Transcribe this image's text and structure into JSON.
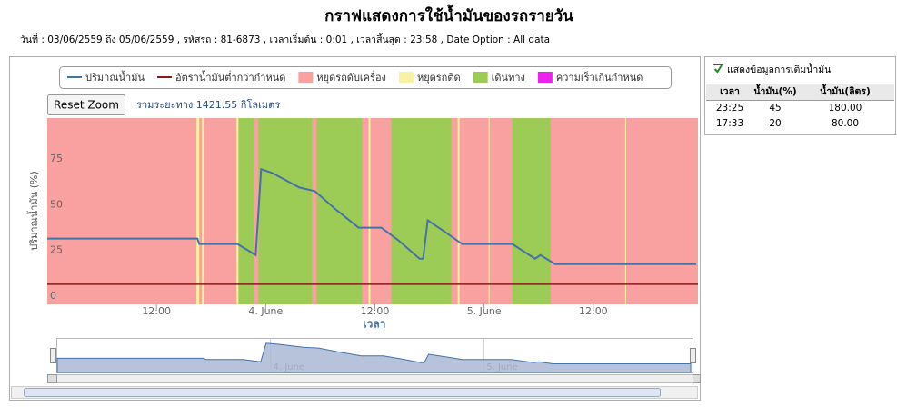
{
  "header": {
    "title": "กราฟแสดงการใช้น้ำมันของรถรายวัน",
    "subtitle": "วันที่ : 03/06/2559 ถึง 05/06/2559 , รหัสรถ : 81-6873 , เวลาเริ่มต้น : 0:01 , เวลาสิ้นสุด : 23:58 , Date Option : All data"
  },
  "chart_data": {
    "type": "line",
    "reset_zoom": "Reset Zoom",
    "distance_label": "รวมระยะทาง 1421.55 กิโลเมตร",
    "xlabel": "เวลา",
    "ylabel": "ปริมาณน้ำมัน (%)",
    "x": [
      0,
      16.5,
      16.7,
      20.9,
      22.9,
      23.5,
      24.7,
      27.7,
      29.4,
      31.7,
      34.2,
      36.7,
      38.6,
      40.9,
      41.3,
      41.8,
      43.6,
      45.6,
      51.1,
      53.6,
      54.2,
      55.8,
      71.3
    ],
    "series": [
      {
        "name": "ปริมาณน้ำมัน",
        "color": "#4572a7",
        "values": [
          32,
          32,
          29,
          29,
          23,
          70,
          68,
          60,
          58,
          48,
          38,
          38,
          31,
          21,
          21,
          42,
          36,
          29,
          29,
          21,
          23,
          18,
          18
        ]
      }
    ],
    "threshold": {
      "name": "อัตราน้ำมันต่ำกว่ากำหนด",
      "color": "#8b1a1a",
      "value": 7
    },
    "band_types": [
      {
        "name": "หยุดรถดับเครื่อง",
        "color": "#f9a0a0"
      },
      {
        "name": "หยุดรถติด",
        "color": "#f7f3a3"
      },
      {
        "name": "เดินทาง",
        "color": "#9ccc55"
      },
      {
        "name": "ความเร็วเกินกำหนด",
        "color": "#ee22ee"
      }
    ],
    "bands": [
      {
        "type": 0,
        "x": [
          0,
          71.5
        ]
      },
      {
        "type": 1,
        "x": [
          16.4,
          16.7
        ]
      },
      {
        "type": 1,
        "x": [
          17.0,
          17.2
        ]
      },
      {
        "type": 2,
        "x": [
          21.0,
          22.7
        ]
      },
      {
        "type": 1,
        "x": [
          20.8,
          21.0
        ]
      },
      {
        "type": 2,
        "x": [
          23.2,
          29.1
        ]
      },
      {
        "type": 2,
        "x": [
          29.6,
          34.6
        ]
      },
      {
        "type": 1,
        "x": [
          35.3,
          35.5
        ]
      },
      {
        "type": 2,
        "x": [
          37.8,
          44.4
        ]
      },
      {
        "type": 1,
        "x": [
          45.1,
          45.3
        ]
      },
      {
        "type": 1,
        "x": [
          48.5,
          48.6
        ]
      },
      {
        "type": 2,
        "x": [
          51.1,
          55.3
        ]
      },
      {
        "type": 1,
        "x": [
          63.5,
          63.6
        ]
      }
    ],
    "xlim": [
      0,
      71.5
    ],
    "xticks": [
      {
        "value": 12,
        "label": "12:00"
      },
      {
        "value": 24,
        "label": "4. June"
      },
      {
        "value": 36,
        "label": "12:00"
      },
      {
        "value": 48,
        "label": "5. June"
      },
      {
        "value": 60,
        "label": "12:00"
      }
    ],
    "ylim": [
      -4,
      98
    ],
    "yticks": [
      0,
      25,
      50,
      75
    ],
    "grid": false
  },
  "refuel": {
    "checkbox_label": "แสดงข้อมูลการเติมน้ำมัน",
    "columns": [
      "เวลา",
      "น้ำมัน(%)",
      "น้ำมัน(ลิตร)"
    ],
    "rows": [
      [
        "23:25",
        "45",
        "180.00"
      ],
      [
        "17:33",
        "20",
        "80.00"
      ]
    ]
  }
}
